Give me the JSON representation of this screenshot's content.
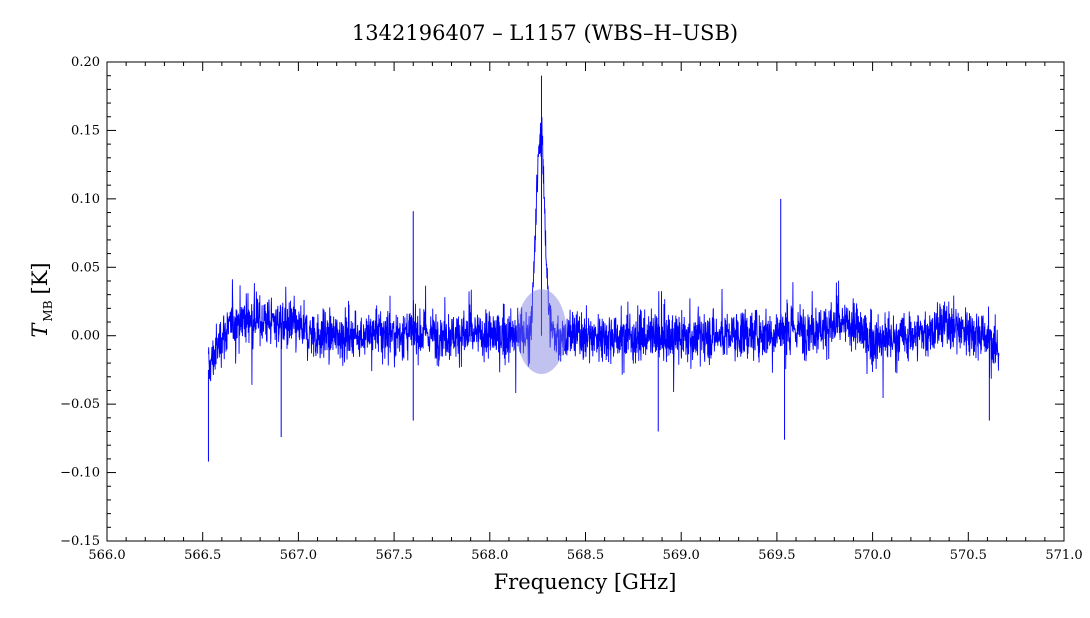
{
  "chart_data": {
    "type": "line",
    "title": "1342196407 – L1157 (WBS–H–USB)",
    "xlabel": "Frequency [GHz]",
    "ylabel_main": "T",
    "ylabel_sub": "MB",
    "ylabel_unit": "[K]",
    "xlim": [
      566.0,
      571.0
    ],
    "ylim": [
      -0.15,
      0.2
    ],
    "x_ticks": [
      566.0,
      566.5,
      567.0,
      567.5,
      568.0,
      568.5,
      569.0,
      569.5,
      570.0,
      570.5,
      571.0
    ],
    "x_tick_labels": [
      "566.0",
      "566.5",
      "567.0",
      "567.5",
      "568.0",
      "568.5",
      "569.0",
      "569.5",
      "570.0",
      "570.5",
      "571.0"
    ],
    "y_ticks": [
      -0.15,
      -0.1,
      -0.05,
      0.0,
      0.05,
      0.1,
      0.15,
      0.2
    ],
    "y_tick_labels": [
      "−0.15",
      "−0.10",
      "−0.05",
      "0.00",
      "0.05",
      "0.10",
      "0.15",
      "0.20"
    ],
    "grid": false,
    "series": [
      {
        "color": "#0000ff",
        "x_start": 566.53,
        "x_end": 570.66,
        "baseline": [
          [
            566.53,
            -0.025
          ],
          [
            566.6,
            0.0
          ],
          [
            566.7,
            0.013
          ],
          [
            566.9,
            0.01
          ],
          [
            567.1,
            0.0
          ],
          [
            567.5,
            0.002
          ],
          [
            568.0,
            0.0
          ],
          [
            568.5,
            0.0
          ],
          [
            569.0,
            -0.002
          ],
          [
            569.5,
            0.003
          ],
          [
            569.9,
            0.008
          ],
          [
            570.0,
            -0.005
          ],
          [
            570.2,
            0.0
          ],
          [
            570.4,
            0.008
          ],
          [
            570.6,
            0.0
          ],
          [
            570.66,
            -0.015
          ]
        ],
        "peak": {
          "center": 568.265,
          "amplitude": 0.15,
          "width": 0.022
        },
        "spikes": [
          [
            566.53,
            -0.092
          ],
          [
            566.91,
            -0.074
          ],
          [
            567.6,
            0.091
          ],
          [
            567.6,
            -0.062
          ],
          [
            568.27,
            0.19
          ],
          [
            568.88,
            -0.07
          ],
          [
            569.54,
            -0.076
          ],
          [
            569.52,
            0.1
          ],
          [
            570.61,
            -0.062
          ]
        ]
      }
    ],
    "highlight": {
      "x": 568.27,
      "y": 0.003,
      "radius_x": 0.13,
      "radius_y": 0.031,
      "color": "#7777dd"
    }
  }
}
